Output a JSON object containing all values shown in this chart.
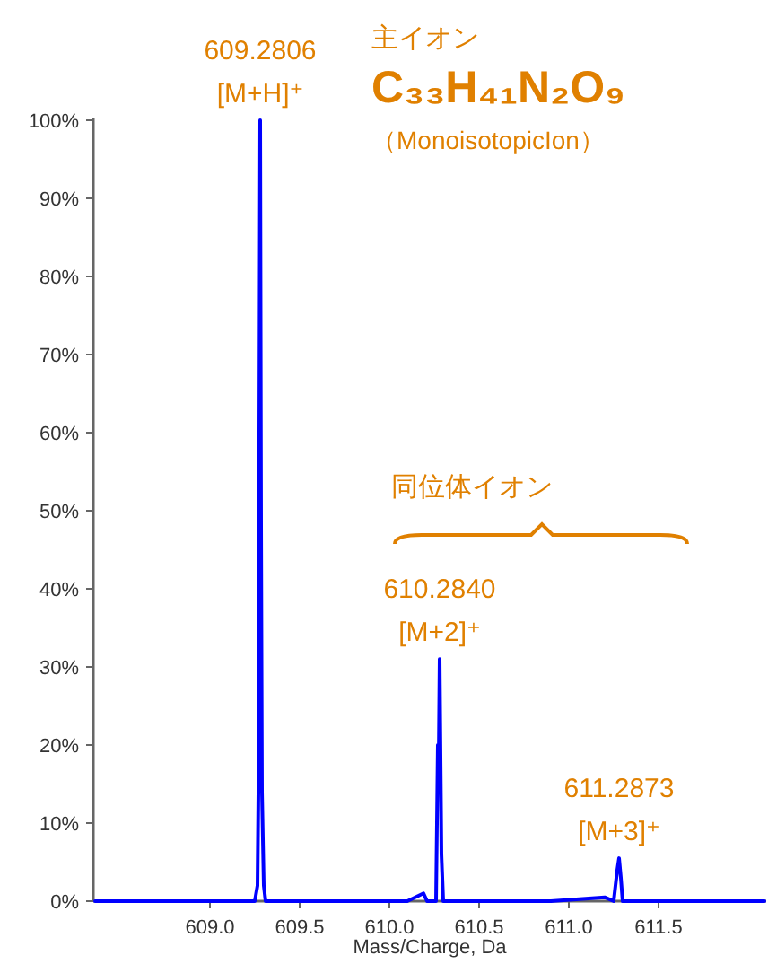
{
  "chart_data": {
    "type": "line",
    "xlabel": "Mass/Charge, Da",
    "xlim": [
      608.35,
      612.1
    ],
    "ylim": [
      0,
      100
    ],
    "xticks": [
      {
        "value": 609.0,
        "label": "609.0"
      },
      {
        "value": 609.5,
        "label": "609.5"
      },
      {
        "value": 610.0,
        "label": "610.0"
      },
      {
        "value": 610.5,
        "label": "610.5"
      },
      {
        "value": 611.0,
        "label": "611.0"
      },
      {
        "value": 611.5,
        "label": "611.5"
      }
    ],
    "yticks": [
      {
        "value": 0,
        "label": "0%"
      },
      {
        "value": 10,
        "label": "10%"
      },
      {
        "value": 20,
        "label": "20%"
      },
      {
        "value": 30,
        "label": "30%"
      },
      {
        "value": 40,
        "label": "40%"
      },
      {
        "value": 50,
        "label": "50%"
      },
      {
        "value": 60,
        "label": "60%"
      },
      {
        "value": 70,
        "label": "70%"
      },
      {
        "value": 80,
        "label": "80%"
      },
      {
        "value": 90,
        "label": "90%"
      },
      {
        "value": 100,
        "label": "100%"
      }
    ],
    "grid": false,
    "series": [
      {
        "color": "#0000ff",
        "x": [
          608.36,
          608.6,
          608.9,
          609.1,
          609.25,
          609.265,
          609.27,
          609.275,
          609.28,
          609.285,
          609.29,
          609.3,
          609.31,
          609.5,
          609.8,
          610.1,
          610.19,
          610.21,
          610.26,
          610.27,
          610.275,
          610.28,
          610.29,
          610.3,
          610.31,
          610.6,
          610.9,
          611.2,
          611.25,
          611.27,
          611.28,
          611.29,
          611.3,
          611.31,
          611.6,
          611.9,
          612.09
        ],
        "values": [
          0,
          0,
          0,
          0,
          0,
          2,
          14,
          60,
          100,
          48,
          14,
          2,
          0,
          0,
          0,
          0,
          1,
          0,
          0,
          20,
          18,
          31,
          6,
          0,
          0,
          0,
          0,
          0.5,
          0,
          4,
          5.5,
          3,
          0,
          0,
          0,
          0,
          0
        ]
      }
    ],
    "annotations": [
      {
        "text": "609.2806\n[M+H]⁺",
        "x": 609.28,
        "y": 100
      },
      {
        "text": "610.2840\n[M+2]⁺",
        "x": 610.28,
        "y": 31
      },
      {
        "text": "611.2873\n[M+3]⁺",
        "x": 611.28,
        "y": 5.5
      },
      "主イオン",
      "C₃₃H₄₁N₂O₉",
      "（MonoisotopicIon）",
      "同位体イオン"
    ]
  }
}
